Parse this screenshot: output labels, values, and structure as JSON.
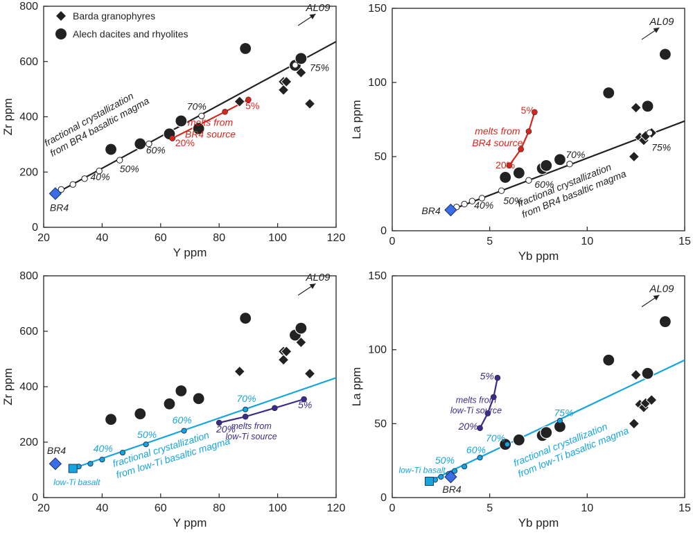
{
  "figure": {
    "legend": [
      {
        "symbol": "diamond",
        "label": "Barda granophyres"
      },
      {
        "symbol": "circle",
        "label": "Alech dacites and rhyolites"
      }
    ]
  },
  "colors": {
    "blue_marker": "#3a6ee8",
    "red": "#d9261c",
    "cyan": "#16a5de",
    "purple": "#3b2c8c",
    "dark": "#222222"
  },
  "chart_data": [
    {
      "type": "scatter",
      "id": "zr-y-br4",
      "xlabel": "Y ppm",
      "ylabel": "Zr ppm",
      "xlim": [
        20,
        120
      ],
      "ylim": [
        0,
        800
      ],
      "xticks": [
        "20",
        "40",
        "60",
        "80",
        "100",
        "120"
      ],
      "yticks": [
        "0",
        "200",
        "400",
        "600",
        "800"
      ],
      "has_legend": true,
      "arrow": {
        "label": "AL09",
        "from": [
          107,
          730
        ],
        "to": [
          113,
          772
        ]
      },
      "diamonds": [
        [
          87,
          455
        ],
        [
          102,
          527
        ],
        [
          103,
          527
        ],
        [
          102,
          497
        ],
        [
          108,
          560
        ],
        [
          111,
          447
        ]
      ],
      "circles": [
        [
          43,
          282
        ],
        [
          53,
          302
        ],
        [
          63,
          338
        ],
        [
          67,
          385
        ],
        [
          73,
          357
        ],
        [
          89,
          647
        ],
        [
          106,
          586
        ],
        [
          108,
          611
        ]
      ],
      "start_marker": {
        "shape": "diamond",
        "point": [
          24,
          122
        ],
        "label": "BR4",
        "color_key": "blue_marker"
      },
      "fc_line": {
        "color_key": "dark",
        "from": [
          24,
          122
        ],
        "to": [
          120,
          672
        ]
      },
      "fc_points": [
        [
          26,
          137
        ],
        [
          30,
          155
        ],
        [
          34,
          176
        ],
        [
          39,
          204
        ],
        [
          46,
          243
        ],
        [
          56,
          302
        ],
        [
          74,
          403
        ],
        [
          106,
          587
        ]
      ],
      "fc_labels": [
        {
          "text": "40%",
          "at": [
            36,
            170
          ]
        },
        {
          "text": "50%",
          "at": [
            46,
            200
          ]
        },
        {
          "text": "60%",
          "at": [
            55,
            267
          ]
        },
        {
          "text": "70%",
          "at": [
            69,
            425
          ]
        },
        {
          "text": "75%",
          "at": [
            111,
            565
          ]
        }
      ],
      "fc_note": {
        "lines": [
          "fractional crystallization",
          "from BR4 basaltic magma"
        ],
        "at": [
          21,
          292
        ],
        "angle_deg": -29,
        "color_key": "dark"
      },
      "melt_curve": {
        "color_key": "red",
        "points": [
          [
            64,
            322
          ],
          [
            82,
            418
          ],
          [
            90,
            462
          ]
        ],
        "labels": [
          {
            "text": "20%",
            "at": [
              65,
              294
            ]
          },
          {
            "text": "5%",
            "at": [
              89,
              427
            ]
          }
        ],
        "note": [
          "melts from",
          "BR4 source"
        ],
        "note_at": [
          77,
          368
        ]
      }
    },
    {
      "type": "scatter",
      "id": "la-yb-br4",
      "xlabel": "Yb ppm",
      "ylabel": "La ppm",
      "xlim": [
        0,
        15
      ],
      "ylim": [
        0,
        150
      ],
      "xticks": [
        "0",
        "5",
        "10",
        "15"
      ],
      "yticks": [
        "0",
        "50",
        "100",
        "150"
      ],
      "arrow": {
        "label": "AL09",
        "from": [
          12.8,
          129
        ],
        "to": [
          13.7,
          137
        ]
      },
      "diamonds": [
        [
          12.5,
          83
        ],
        [
          12.4,
          50
        ],
        [
          12.7,
          63
        ],
        [
          12.9,
          61
        ],
        [
          13.0,
          64
        ],
        [
          13.3,
          66
        ]
      ],
      "circles": [
        [
          5.8,
          36
        ],
        [
          6.5,
          39
        ],
        [
          7.7,
          42
        ],
        [
          7.9,
          44
        ],
        [
          8.6,
          48
        ],
        [
          11.1,
          93
        ],
        [
          13.1,
          84
        ],
        [
          14.0,
          119
        ]
      ],
      "start_marker": {
        "shape": "diamond",
        "point": [
          3.0,
          14
        ],
        "label": "BR4",
        "color_key": "blue_marker"
      },
      "fc_line": {
        "color_key": "dark",
        "from": [
          3.0,
          14
        ],
        "to": [
          15.0,
          74
        ]
      },
      "fc_points": [
        [
          3.3,
          16
        ],
        [
          3.7,
          18
        ],
        [
          4.1,
          20
        ],
        [
          4.6,
          22
        ],
        [
          5.6,
          27
        ],
        [
          7.0,
          34
        ],
        [
          9.1,
          45
        ],
        [
          13.2,
          66
        ]
      ],
      "fc_labels": [
        {
          "text": "40%",
          "at": [
            4.2,
            15
          ]
        },
        {
          "text": "50%",
          "at": [
            5.7,
            18
          ]
        },
        {
          "text": "60%",
          "at": [
            7.3,
            29
          ]
        },
        {
          "text": "70%",
          "at": [
            8.9,
            49
          ]
        },
        {
          "text": "75%",
          "at": [
            13.3,
            54
          ]
        }
      ],
      "fc_note": {
        "lines": [
          "fractional crystallization",
          "from BR4 basaltic magma"
        ],
        "at": [
          6.5,
          16
        ],
        "angle_deg": -22,
        "color_key": "dark"
      },
      "melt_curve": {
        "color_key": "red",
        "points": [
          [
            6.0,
            44
          ],
          [
            6.6,
            55
          ],
          [
            7.0,
            67
          ],
          [
            7.3,
            80
          ]
        ],
        "labels": [
          {
            "text": "20%",
            "at": [
              5.3,
              42
            ]
          },
          {
            "text": "5%",
            "at": [
              6.6,
              79
            ]
          }
        ],
        "note": [
          "melts from",
          "BR4 source"
        ],
        "note_at": [
          5.4,
          65
        ]
      }
    },
    {
      "type": "scatter",
      "id": "zr-y-lowti",
      "xlabel": "Y ppm",
      "ylabel": "Zr ppm",
      "xlim": [
        20,
        120
      ],
      "ylim": [
        0,
        800
      ],
      "xticks": [
        "20",
        "40",
        "60",
        "80",
        "100",
        "120"
      ],
      "yticks": [
        "0",
        "200",
        "400",
        "600",
        "800"
      ],
      "arrow": {
        "label": "AL09",
        "from": [
          107,
          730
        ],
        "to": [
          113,
          772
        ]
      },
      "diamonds": [
        [
          87,
          455
        ],
        [
          102,
          527
        ],
        [
          103,
          527
        ],
        [
          102,
          497
        ],
        [
          108,
          560
        ],
        [
          111,
          447
        ]
      ],
      "circles": [
        [
          43,
          282
        ],
        [
          53,
          302
        ],
        [
          63,
          338
        ],
        [
          67,
          385
        ],
        [
          73,
          357
        ],
        [
          89,
          647
        ],
        [
          106,
          586
        ],
        [
          108,
          611
        ]
      ],
      "start_marker": {
        "shape": "diamond",
        "point": [
          24,
          122
        ],
        "label": "BR4",
        "color_key": "blue_marker"
      },
      "base_marker": {
        "shape": "square",
        "point": [
          30,
          105
        ],
        "label": "low-Ti basalt",
        "color_key": "cyan"
      },
      "fc_line": {
        "color_key": "cyan",
        "from": [
          30,
          105
        ],
        "to": [
          120,
          432
        ]
      },
      "fc_points": [
        [
          32,
          112
        ],
        [
          36,
          122
        ],
        [
          40,
          137
        ],
        [
          47,
          162
        ],
        [
          55,
          192
        ],
        [
          68,
          241
        ],
        [
          89,
          318
        ]
      ],
      "fc_labels": [
        {
          "text": "40%",
          "at": [
            37,
            165
          ]
        },
        {
          "text": "50%",
          "at": [
            52,
            215
          ]
        },
        {
          "text": "60%",
          "at": [
            64,
            268
          ]
        },
        {
          "text": "70%",
          "at": [
            86,
            345
          ]
        }
      ],
      "fc_note": {
        "lines": [
          "fractional crystallization",
          "from low-Ti basaltic magma"
        ],
        "at": [
          44,
          110
        ],
        "angle_deg": -17,
        "color_key": "cyan"
      },
      "melt_curve": {
        "color_key": "purple",
        "points": [
          [
            80,
            270
          ],
          [
            89,
            292
          ],
          [
            99,
            323
          ],
          [
            109,
            355
          ]
        ],
        "labels": [
          {
            "text": "20%",
            "at": [
              79,
              235
            ]
          },
          {
            "text": "5%",
            "at": [
              107,
              323
            ]
          }
        ],
        "note": [
          "melts from",
          "low-Ti source"
        ],
        "note_at": [
          91,
          248
        ]
      }
    },
    {
      "type": "scatter",
      "id": "la-yb-lowti",
      "xlabel": "Yb ppm",
      "ylabel": "La ppm",
      "xlim": [
        0,
        15
      ],
      "ylim": [
        0,
        150
      ],
      "xticks": [
        "0",
        "5",
        "10",
        "15"
      ],
      "yticks": [
        "0",
        "50",
        "100",
        "150"
      ],
      "arrow": {
        "label": "AL09",
        "from": [
          12.8,
          129
        ],
        "to": [
          13.7,
          137
        ]
      },
      "diamonds": [
        [
          12.5,
          83
        ],
        [
          12.4,
          50
        ],
        [
          12.7,
          63
        ],
        [
          12.9,
          61
        ],
        [
          13.0,
          64
        ],
        [
          13.3,
          66
        ]
      ],
      "circles": [
        [
          5.8,
          36
        ],
        [
          6.5,
          39
        ],
        [
          7.7,
          42
        ],
        [
          7.9,
          44
        ],
        [
          8.6,
          48
        ],
        [
          11.1,
          93
        ],
        [
          13.1,
          84
        ],
        [
          14.0,
          119
        ]
      ],
      "start_marker": {
        "shape": "diamond",
        "point": [
          3.0,
          14
        ],
        "label": "BR4",
        "color_key": "blue_marker"
      },
      "base_marker": {
        "shape": "square",
        "point": [
          1.9,
          11
        ],
        "label": "low-Ti basalt",
        "color_key": "cyan"
      },
      "fc_line": {
        "color_key": "cyan",
        "from": [
          1.9,
          11
        ],
        "to": [
          15.0,
          93
        ]
      },
      "fc_points": [
        [
          2.2,
          12
        ],
        [
          2.5,
          14
        ],
        [
          2.9,
          16
        ],
        [
          3.2,
          18
        ],
        [
          3.7,
          21
        ],
        [
          4.5,
          27
        ],
        [
          5.9,
          36
        ],
        [
          8.6,
          52
        ]
      ],
      "fc_labels": [
        {
          "text": "50%",
          "at": [
            2.2,
            23
          ]
        },
        {
          "text": "60%",
          "at": [
            3.8,
            30
          ]
        },
        {
          "text": "70%",
          "at": [
            4.8,
            38
          ]
        },
        {
          "text": "75%",
          "at": [
            8.3,
            55
          ]
        }
      ],
      "fc_note": {
        "lines": [
          "fractional crystallization",
          "from low-Ti basaltic magma"
        ],
        "at": [
          6.3,
          21
        ],
        "angle_deg": -22,
        "color_key": "cyan"
      },
      "melt_curve": {
        "color_key": "purple",
        "points": [
          [
            4.5,
            47
          ],
          [
            4.9,
            57
          ],
          [
            5.2,
            68
          ],
          [
            5.4,
            81
          ]
        ],
        "labels": [
          {
            "text": "20%",
            "at": [
              3.4,
              46
            ]
          },
          {
            "text": "5%",
            "at": [
              4.5,
              80
            ]
          }
        ],
        "note": [
          "melts from",
          "low-Ti source"
        ],
        "note_at": [
          4.3,
          64
        ]
      }
    }
  ]
}
